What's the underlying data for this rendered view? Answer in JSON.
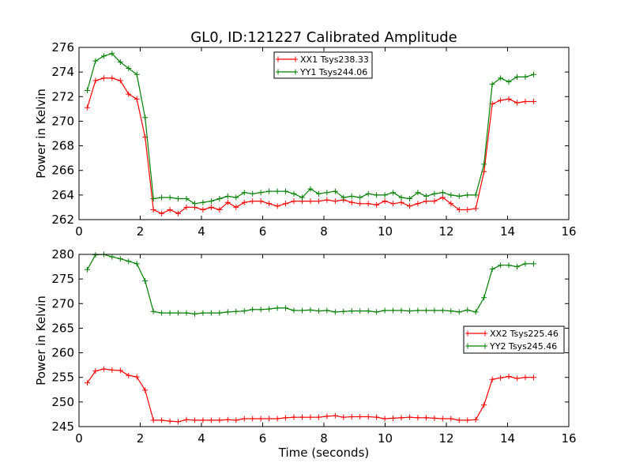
{
  "chart_data": {
    "title": "GL0, ID:121227 Calibrated Amplitude",
    "panels": [
      {
        "type": "line",
        "xlabel": "",
        "ylabel": "Power in Kelvin",
        "xlim": [
          0,
          16
        ],
        "ylim": [
          262,
          276
        ],
        "xticks": [
          0,
          2,
          4,
          6,
          8,
          10,
          12,
          14,
          16
        ],
        "yticks": [
          262,
          264,
          266,
          268,
          270,
          272,
          274,
          276
        ],
        "grid": false,
        "legend_position": "upper-center",
        "x": [
          0.27,
          0.54,
          0.81,
          1.08,
          1.35,
          1.62,
          1.89,
          2.16,
          2.43,
          2.7,
          2.97,
          3.24,
          3.51,
          3.78,
          4.05,
          4.32,
          4.59,
          4.86,
          5.13,
          5.4,
          5.67,
          5.94,
          6.21,
          6.48,
          6.75,
          7.02,
          7.29,
          7.56,
          7.83,
          8.1,
          8.37,
          8.64,
          8.91,
          9.18,
          9.45,
          9.72,
          9.99,
          10.26,
          10.53,
          10.8,
          11.07,
          11.34,
          11.61,
          11.88,
          12.15,
          12.42,
          12.69,
          12.96,
          13.23,
          13.5,
          13.77,
          14.04,
          14.31,
          14.58,
          14.85
        ],
        "series": [
          {
            "name": "XX1 Tsys238.33",
            "color": "#ff0000",
            "values": [
              271.1,
              273.3,
              273.5,
              273.5,
              273.3,
              272.2,
              271.8,
              268.7,
              262.8,
              262.5,
              262.8,
              262.5,
              263.0,
              263.0,
              262.8,
              263.0,
              262.8,
              263.4,
              263.0,
              263.4,
              263.5,
              263.5,
              263.3,
              263.1,
              263.3,
              263.5,
              263.5,
              263.5,
              263.5,
              263.6,
              263.5,
              263.6,
              263.4,
              263.3,
              263.3,
              263.2,
              263.5,
              263.3,
              263.4,
              263.1,
              263.3,
              263.5,
              263.5,
              263.8,
              263.3,
              262.8,
              262.8,
              262.9,
              265.9,
              271.4,
              271.7,
              271.8,
              271.5,
              271.6,
              271.6
            ]
          },
          {
            "name": "YY1 Tsys244.06",
            "color": "#008000",
            "values": [
              272.5,
              274.9,
              275.3,
              275.5,
              274.8,
              274.3,
              273.8,
              270.3,
              263.7,
              263.8,
              263.8,
              263.7,
              263.7,
              263.3,
              263.4,
              263.5,
              263.7,
              263.9,
              263.8,
              264.2,
              264.1,
              264.2,
              264.3,
              264.3,
              264.3,
              264.1,
              263.8,
              264.5,
              264.1,
              264.2,
              264.3,
              263.8,
              263.9,
              263.8,
              264.1,
              264.0,
              264.0,
              264.2,
              263.8,
              263.7,
              264.2,
              263.9,
              264.1,
              264.2,
              264.0,
              263.9,
              264.0,
              264.0,
              266.5,
              273.0,
              273.5,
              273.2,
              273.6,
              273.6,
              273.8
            ]
          }
        ]
      },
      {
        "type": "line",
        "xlabel": "Time (seconds)",
        "ylabel": "Power in Kelvin",
        "xlim": [
          0,
          16
        ],
        "ylim": [
          245,
          280
        ],
        "xticks": [
          0,
          2,
          4,
          6,
          8,
          10,
          12,
          14,
          16
        ],
        "yticks": [
          245,
          250,
          255,
          260,
          265,
          270,
          275,
          280
        ],
        "grid": false,
        "legend_position": "center-right",
        "x": [
          0.27,
          0.54,
          0.81,
          1.08,
          1.35,
          1.62,
          1.89,
          2.16,
          2.43,
          2.7,
          2.97,
          3.24,
          3.51,
          3.78,
          4.05,
          4.32,
          4.59,
          4.86,
          5.13,
          5.4,
          5.67,
          5.94,
          6.21,
          6.48,
          6.75,
          7.02,
          7.29,
          7.56,
          7.83,
          8.1,
          8.37,
          8.64,
          8.91,
          9.18,
          9.45,
          9.72,
          9.99,
          10.26,
          10.53,
          10.8,
          11.07,
          11.34,
          11.61,
          11.88,
          12.15,
          12.42,
          12.69,
          12.96,
          13.23,
          13.5,
          13.77,
          14.04,
          14.31,
          14.58,
          14.85
        ],
        "series": [
          {
            "name": "XX2 Tsys225.46",
            "color": "#ff0000",
            "values": [
              253.9,
              256.3,
              256.7,
              256.5,
              256.4,
              255.4,
              255.1,
              252.4,
              246.3,
              246.3,
              246.1,
              246.0,
              246.4,
              246.3,
              246.3,
              246.3,
              246.3,
              246.4,
              246.3,
              246.6,
              246.6,
              246.6,
              246.6,
              246.6,
              246.8,
              246.9,
              246.9,
              246.9,
              246.9,
              247.1,
              247.2,
              246.9,
              247.0,
              247.0,
              247.0,
              246.9,
              246.6,
              246.7,
              246.8,
              246.9,
              246.8,
              246.8,
              246.7,
              246.6,
              246.6,
              246.3,
              246.3,
              246.4,
              249.4,
              254.6,
              254.9,
              255.2,
              254.8,
              255.0,
              255.0
            ]
          },
          {
            "name": "YY2 Tsys245.46",
            "color": "#008000",
            "values": [
              276.9,
              279.9,
              280.0,
              279.5,
              279.1,
              278.6,
              278.1,
              274.6,
              268.4,
              268.1,
              268.1,
              268.1,
              268.1,
              267.9,
              268.1,
              268.1,
              268.1,
              268.3,
              268.4,
              268.5,
              268.8,
              268.8,
              268.9,
              269.1,
              269.1,
              268.6,
              268.6,
              268.7,
              268.5,
              268.6,
              268.3,
              268.4,
              268.5,
              268.5,
              268.5,
              268.3,
              268.6,
              268.6,
              268.6,
              268.5,
              268.6,
              268.6,
              268.6,
              268.6,
              268.5,
              268.3,
              268.7,
              268.3,
              271.2,
              277.0,
              277.8,
              277.8,
              277.5,
              278.1,
              278.1
            ]
          }
        ]
      }
    ]
  }
}
